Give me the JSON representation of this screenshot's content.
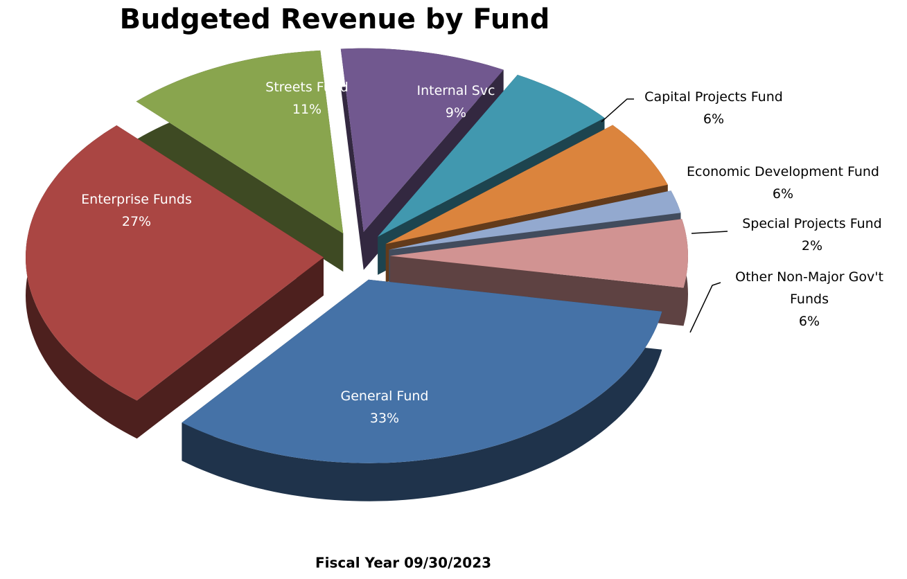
{
  "chart_data": {
    "type": "pie",
    "title": "Budgeted Revenue by Fund",
    "subtitle": "Fiscal Year 09/30/2023",
    "categories": [
      "General Fund",
      "Enterprise Funds",
      "Streets Fund",
      "Internal Svc",
      "Capital Projects Fund",
      "Economic Development Fund",
      "Special Projects Fund",
      "Other Non-Major Gov't Funds"
    ],
    "values": [
      33,
      27,
      11,
      9,
      6,
      6,
      2,
      6
    ],
    "value_labels": [
      "33%",
      "27%",
      "11%",
      "9%",
      "6%",
      "6%",
      "2%",
      "6%"
    ],
    "colors": [
      "#4572a7",
      "#aa4643",
      "#89a54e",
      "#71588f",
      "#4198af",
      "#db843d",
      "#93a9cf",
      "#d19392"
    ]
  }
}
